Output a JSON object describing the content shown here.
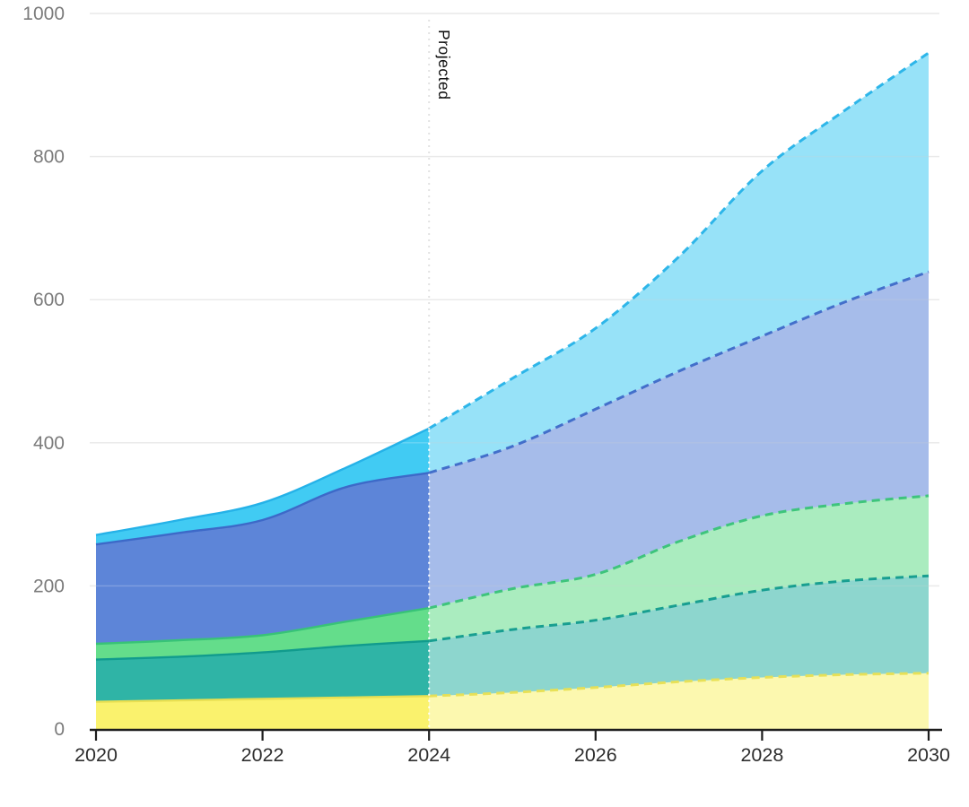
{
  "chart": {
    "background_color": "#ffffff",
    "grid_color": "#e3e3e3",
    "axis_color": "#1d1d1d",
    "x_tick_label_color": "#2e2e2e",
    "y_tick_label_color": "#7b7b7b",
    "divider_dot_color_above": "#e2e2e2",
    "divider_dot_color_over_areas": "#ffffff"
  },
  "chart_data": {
    "type": "area",
    "stacked": true,
    "title": "",
    "xlabel": "",
    "ylabel": "",
    "legend": false,
    "grid": true,
    "xlim": [
      2020,
      2030
    ],
    "ylim": [
      0,
      1000
    ],
    "xticks": [
      2020,
      2022,
      2024,
      2026,
      2028,
      2030
    ],
    "yticks": [
      0,
      200,
      400,
      600,
      800,
      1000
    ],
    "x": [
      2020,
      2021,
      2022,
      2023,
      2024,
      2025,
      2026,
      2027,
      2028,
      2029,
      2030
    ],
    "series": [
      {
        "name": "yellow-band",
        "color": "#FAF26D",
        "stroke": "#E8DF52",
        "values": [
          38,
          40,
          42,
          44,
          46,
          51,
          58,
          66,
          72,
          76,
          78
        ]
      },
      {
        "name": "teal-band",
        "color": "#2FB4A6",
        "stroke": "#119B8D",
        "values": [
          59,
          61,
          65,
          72,
          77,
          88,
          94,
          107,
          122,
          131,
          136
        ]
      },
      {
        "name": "green-band",
        "color": "#64DD8B",
        "stroke": "#38C377",
        "values": [
          22,
          23,
          24,
          34,
          46,
          57,
          64,
          89,
          104,
          108,
          112
        ]
      },
      {
        "name": "blue-band",
        "color": "#5D85D8",
        "stroke": "#3D69C8",
        "values": [
          139,
          150,
          161,
          188,
          189,
          199,
          231,
          238,
          251,
          282,
          313
        ]
      },
      {
        "name": "cyan-band",
        "color": "#41CBF3",
        "stroke": "#25B2E8",
        "values": [
          13,
          18,
          24,
          27,
          62,
          95,
          113,
          160,
          231,
          268,
          306
        ]
      }
    ],
    "cumulative_totals": [
      271,
      292,
      316,
      365,
      420,
      490,
      560,
      660,
      780,
      865,
      945
    ],
    "projected_from_x": 2024,
    "projected_fill_opacity": 0.55,
    "annotation": "Projected"
  }
}
